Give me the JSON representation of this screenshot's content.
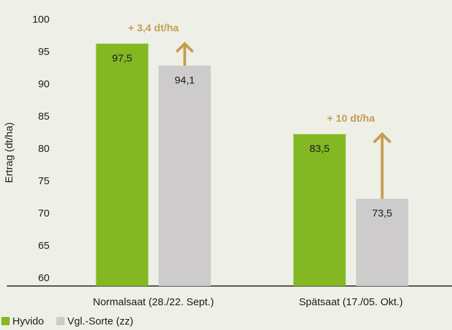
{
  "chart_data": {
    "type": "bar",
    "y_label": "Ertrag (dt/ha)",
    "categories": [
      "Normalsaat (28./22. Sept.)",
      "Spätsaat (17./05. Okt.)"
    ],
    "series": [
      {
        "name": "Hyvido",
        "color": "#84b823",
        "values": [
          97.5,
          83.5
        ],
        "value_labels": [
          "97,5",
          "83,5"
        ]
      },
      {
        "name": "Vgl.-Sorte (zz)",
        "color": "#cdcbcb",
        "values": [
          94.1,
          73.5
        ],
        "value_labels": [
          "94,1",
          "73,5"
        ]
      }
    ],
    "annotations": [
      "+ 3,4 dt/ha",
      "+ 10 dt/ha"
    ],
    "annotation_color": "#c59d51",
    "ylim": [
      60,
      100
    ],
    "yticks": [
      60,
      65,
      70,
      75,
      80,
      85,
      90,
      95,
      100
    ],
    "grid": false
  }
}
